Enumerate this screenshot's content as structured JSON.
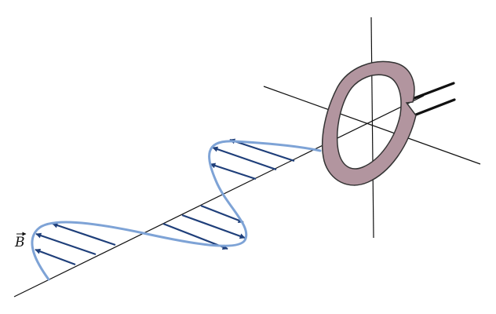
{
  "field_label": "B",
  "colors": {
    "axis": "#111111",
    "wave": "#7ea3d6",
    "arrow": "#1f3f7a",
    "loop_fill": "#b2959f",
    "loop_edge": "#333333",
    "lead": "#111111"
  },
  "icons": {
    "field_vector": "vector-arrow-accent"
  }
}
